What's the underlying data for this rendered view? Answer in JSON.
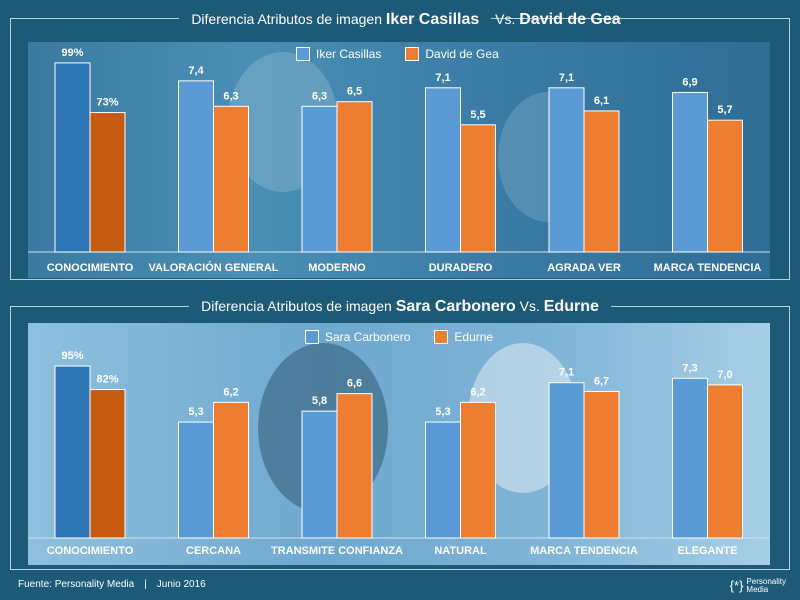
{
  "panel1": {
    "title_prefix": "Diferencia Atributos de imagen",
    "title_a": "Iker Casillas",
    "title_vs": "Vs.",
    "title_b": "David de Gea"
  },
  "panel2": {
    "title_prefix": "Diferencia Atributos de imagen",
    "title_a": "Sara Carbonero",
    "title_vs": "Vs.",
    "title_b": "Edurne"
  },
  "footer": {
    "source": "Fuente: Personality Media",
    "separator": "|",
    "date": "Junio 2016"
  },
  "logo": {
    "line1": "Personality",
    "line2": "Media"
  },
  "colors": {
    "blue": "#5b9bd5",
    "orange": "#ed7d31",
    "blue_dark": "#2e75b6",
    "orange_dark": "#c55a11"
  },
  "chart_data": [
    {
      "type": "bar",
      "categories": [
        "CONOCIMIENTO",
        "VALORACIÓN GENERAL",
        "MODERNO",
        "DURADERO",
        "AGRADA VER",
        "MARCA TENDENCIA"
      ],
      "series": [
        {
          "name": "Iker Casillas",
          "values": [
            99,
            7.4,
            6.3,
            7.1,
            7.1,
            6.9
          ],
          "labels": [
            "99%",
            "7,4",
            "6,3",
            "7,1",
            "7,1",
            "6,9"
          ]
        },
        {
          "name": "David de Gea",
          "values": [
            73,
            6.3,
            6.5,
            5.5,
            6.1,
            5.7
          ],
          "labels": [
            "73%",
            "6,3",
            "6,5",
            "5,5",
            "6,1",
            "5,7"
          ]
        }
      ],
      "note_first_category_percent_scale": true
    },
    {
      "type": "bar",
      "categories": [
        "CONOCIMIENTO",
        "CERCANA",
        "TRANSMITE  CONFIANZA",
        "NATURAL",
        "MARCA TENDENCIA",
        "ELEGANTE"
      ],
      "series": [
        {
          "name": "Sara Carbonero",
          "values": [
            95,
            5.3,
            5.8,
            5.3,
            7.1,
            7.3
          ],
          "labels": [
            "95%",
            "5,3",
            "5,8",
            "5,3",
            "7,1",
            "7,3"
          ]
        },
        {
          "name": "Edurne",
          "values": [
            82,
            6.2,
            6.6,
            6.2,
            6.7,
            7.0
          ],
          "labels": [
            "82%",
            "6,2",
            "6,6",
            "6,2",
            "6,7",
            "7,0"
          ]
        }
      ],
      "note_first_category_percent_scale": true
    }
  ]
}
